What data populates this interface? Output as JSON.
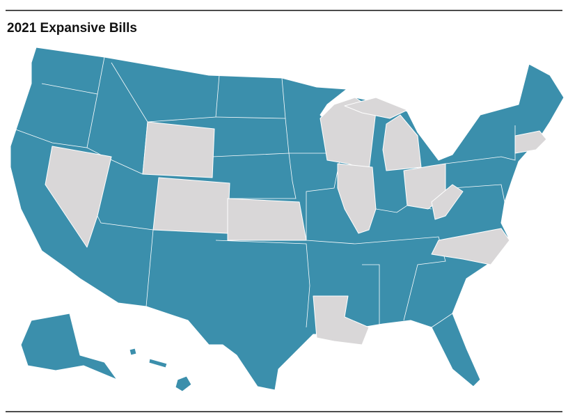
{
  "header": {
    "title": "2021 Expansive Bills"
  }
}
